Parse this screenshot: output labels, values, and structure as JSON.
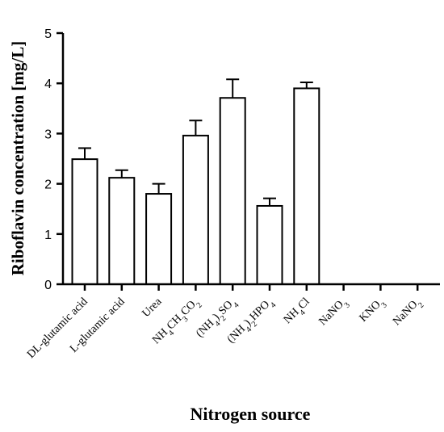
{
  "chart_data": {
    "type": "bar",
    "xlabel": "Nitrogen source",
    "ylabel": "Riboflavin concentration [mg/L]",
    "ylim": [
      0,
      5
    ],
    "yticks": [
      0,
      1,
      2,
      3,
      4,
      5
    ],
    "grid": false,
    "categories": [
      {
        "label": "DL-glutamic acid",
        "parts": [
          {
            "t": "DL-glutamic acid"
          }
        ]
      },
      {
        "label": "L-glutamic acid",
        "parts": [
          {
            "t": "L-glutamic acid"
          }
        ]
      },
      {
        "label": "Urea",
        "parts": [
          {
            "t": "Urea"
          }
        ]
      },
      {
        "label": "NH4CH3CO2",
        "parts": [
          {
            "t": "NH"
          },
          {
            "t": "4",
            "sub": true
          },
          {
            "t": "CH"
          },
          {
            "t": "3",
            "sub": true
          },
          {
            "t": "CO"
          },
          {
            "t": "2",
            "sub": true
          }
        ]
      },
      {
        "label": "(NH4)2SO4",
        "parts": [
          {
            "t": "(NH"
          },
          {
            "t": "4",
            "sub": true
          },
          {
            "t": ")"
          },
          {
            "t": "2",
            "sub": true
          },
          {
            "t": "SO"
          },
          {
            "t": "4",
            "sub": true
          }
        ]
      },
      {
        "label": "(NH4)2HPO4",
        "parts": [
          {
            "t": "(NH"
          },
          {
            "t": "4",
            "sub": true
          },
          {
            "t": ")"
          },
          {
            "t": "2",
            "sub": true
          },
          {
            "t": "HPO"
          },
          {
            "t": "4",
            "sub": true
          }
        ]
      },
      {
        "label": "NH4Cl",
        "parts": [
          {
            "t": "NH"
          },
          {
            "t": "4",
            "sub": true
          },
          {
            "t": "Cl"
          }
        ]
      },
      {
        "label": "NaNO3",
        "parts": [
          {
            "t": "NaNO"
          },
          {
            "t": "3",
            "sub": true
          }
        ]
      },
      {
        "label": "KNO3",
        "parts": [
          {
            "t": "KNO"
          },
          {
            "t": "3",
            "sub": true
          }
        ]
      },
      {
        "label": "NaNO2",
        "parts": [
          {
            "t": "NaNO"
          },
          {
            "t": "2",
            "sub": true
          }
        ]
      }
    ],
    "values": [
      2.49,
      2.12,
      1.8,
      2.96,
      3.71,
      1.56,
      3.9,
      0,
      0,
      0
    ],
    "errors": [
      0.22,
      0.15,
      0.2,
      0.3,
      0.37,
      0.15,
      0.12,
      0,
      0,
      0
    ],
    "bar_fill": "#ffffff",
    "bar_stroke": "#000000"
  }
}
